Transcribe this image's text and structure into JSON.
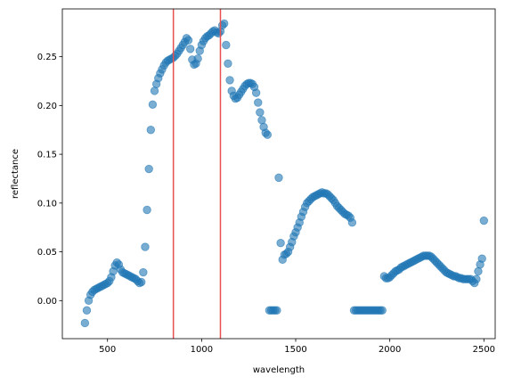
{
  "chart_data": {
    "type": "scatter",
    "xlabel": "wavelength",
    "ylabel": "reflectance",
    "color": "#1f77b4",
    "x": [
      380,
      390,
      400,
      410,
      420,
      430,
      440,
      450,
      460,
      470,
      480,
      490,
      500,
      510,
      520,
      530,
      540,
      550,
      560,
      570,
      580,
      590,
      600,
      610,
      620,
      630,
      640,
      650,
      660,
      670,
      680,
      690,
      700,
      710,
      720,
      730,
      740,
      750,
      760,
      770,
      780,
      790,
      800,
      810,
      820,
      830,
      840,
      850,
      860,
      870,
      880,
      890,
      900,
      910,
      920,
      930,
      940,
      950,
      960,
      970,
      980,
      990,
      1000,
      1010,
      1020,
      1030,
      1040,
      1050,
      1060,
      1070,
      1080,
      1090,
      1100,
      1110,
      1120,
      1130,
      1140,
      1150,
      1160,
      1170,
      1180,
      1190,
      1200,
      1210,
      1220,
      1230,
      1240,
      1250,
      1260,
      1270,
      1280,
      1290,
      1300,
      1310,
      1320,
      1330,
      1340,
      1350,
      1360,
      1370,
      1380,
      1390,
      1400,
      1410,
      1420,
      1430,
      1440,
      1450,
      1460,
      1470,
      1480,
      1490,
      1500,
      1510,
      1520,
      1530,
      1540,
      1550,
      1560,
      1570,
      1580,
      1590,
      1600,
      1610,
      1620,
      1630,
      1640,
      1650,
      1660,
      1670,
      1680,
      1690,
      1700,
      1710,
      1720,
      1730,
      1740,
      1750,
      1760,
      1770,
      1780,
      1790,
      1800,
      1810,
      1820,
      1830,
      1840,
      1850,
      1860,
      1870,
      1880,
      1890,
      1900,
      1910,
      1920,
      1930,
      1940,
      1950,
      1960,
      1970,
      1980,
      1990,
      2000,
      2010,
      2020,
      2030,
      2040,
      2050,
      2060,
      2070,
      2080,
      2090,
      2100,
      2110,
      2120,
      2130,
      2140,
      2150,
      2160,
      2170,
      2180,
      2190,
      2200,
      2210,
      2220,
      2230,
      2240,
      2250,
      2260,
      2270,
      2280,
      2290,
      2300,
      2310,
      2320,
      2330,
      2340,
      2350,
      2360,
      2370,
      2380,
      2390,
      2400,
      2410,
      2420,
      2430,
      2440,
      2450,
      2460,
      2470,
      2480,
      2490,
      2500
    ],
    "values": [
      -0.023,
      -0.01,
      0.0,
      0.006,
      0.009,
      0.011,
      0.012,
      0.013,
      0.014,
      0.015,
      0.016,
      0.017,
      0.018,
      0.02,
      0.024,
      0.03,
      0.036,
      0.039,
      0.037,
      0.032,
      0.029,
      0.028,
      0.027,
      0.026,
      0.025,
      0.024,
      0.023,
      0.022,
      0.02,
      0.018,
      0.019,
      0.029,
      0.055,
      0.093,
      0.135,
      0.175,
      0.201,
      0.215,
      0.222,
      0.228,
      0.233,
      0.237,
      0.241,
      0.244,
      0.246,
      0.247,
      0.248,
      0.249,
      0.251,
      0.253,
      0.256,
      0.259,
      0.262,
      0.265,
      0.269,
      0.267,
      0.258,
      0.247,
      0.242,
      0.243,
      0.248,
      0.256,
      0.262,
      0.266,
      0.269,
      0.271,
      0.272,
      0.274,
      0.276,
      0.277,
      0.275,
      0.274,
      0.276,
      0.282,
      0.284,
      0.262,
      0.243,
      0.226,
      0.215,
      0.21,
      0.207,
      0.208,
      0.211,
      0.214,
      0.217,
      0.22,
      0.222,
      0.223,
      0.223,
      0.222,
      0.219,
      0.213,
      0.203,
      0.193,
      0.185,
      0.178,
      0.172,
      0.17,
      -0.01,
      -0.01,
      -0.01,
      -0.01,
      -0.01,
      0.126,
      0.059,
      0.042,
      0.047,
      0.048,
      0.05,
      0.055,
      0.06,
      0.066,
      0.07,
      0.075,
      0.08,
      0.086,
      0.091,
      0.096,
      0.1,
      0.102,
      0.104,
      0.106,
      0.107,
      0.108,
      0.109,
      0.11,
      0.111,
      0.11,
      0.11,
      0.109,
      0.107,
      0.105,
      0.103,
      0.1,
      0.097,
      0.095,
      0.093,
      0.091,
      0.089,
      0.088,
      0.087,
      0.085,
      0.08,
      -0.01,
      -0.01,
      -0.01,
      -0.01,
      -0.01,
      -0.01,
      -0.01,
      -0.01,
      -0.01,
      -0.01,
      -0.01,
      -0.01,
      -0.01,
      -0.01,
      -0.01,
      -0.01,
      0.025,
      0.023,
      0.023,
      0.024,
      0.026,
      0.028,
      0.03,
      0.031,
      0.032,
      0.034,
      0.035,
      0.036,
      0.037,
      0.038,
      0.039,
      0.04,
      0.041,
      0.042,
      0.043,
      0.044,
      0.045,
      0.046,
      0.046,
      0.046,
      0.046,
      0.045,
      0.043,
      0.041,
      0.039,
      0.037,
      0.035,
      0.033,
      0.031,
      0.029,
      0.028,
      0.027,
      0.026,
      0.025,
      0.025,
      0.024,
      0.023,
      0.023,
      0.022,
      0.022,
      0.022,
      0.022,
      0.022,
      0.02,
      0.018,
      0.022,
      0.03,
      0.037,
      0.043,
      0.082
    ],
    "vlines": {
      "x": [
        850,
        1100
      ],
      "color": "#e8504f"
    },
    "xlim": [
      260,
      2560
    ],
    "ylim": [
      -0.039,
      0.299
    ],
    "xticks": [
      500,
      1000,
      1500,
      2000,
      2500
    ],
    "yticks": [
      {
        "value": 0,
        "label": "0.00"
      },
      {
        "value": 0.05,
        "label": "0.05"
      },
      {
        "value": 0.1,
        "label": "0.10"
      },
      {
        "value": 0.15,
        "label": "0.15"
      },
      {
        "value": 0.2,
        "label": "0.20"
      },
      {
        "value": 0.25,
        "label": "0.25"
      }
    ]
  }
}
